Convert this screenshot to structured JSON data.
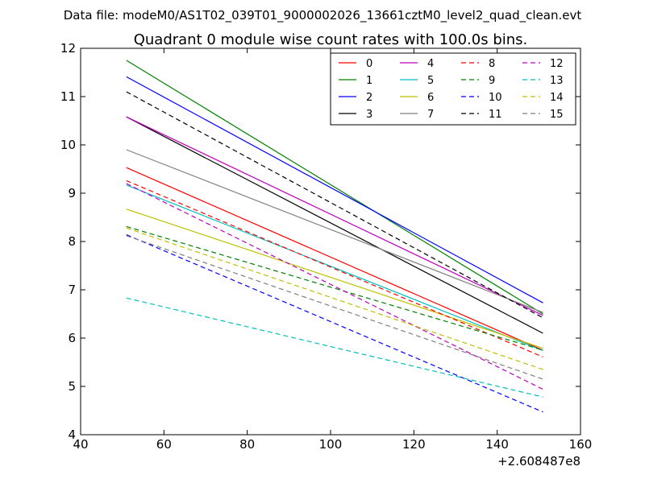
{
  "header": {
    "datafile": "Data file: modeM0/AS1T02_039T01_9000002026_13661cztM0_level2_quad_clean.evt"
  },
  "chart_data": {
    "type": "line",
    "title": "Quadrant 0 module wise count rates with 100.0s bins.",
    "xlabel": "",
    "ylabel": "",
    "x_offset_label": "+2.608487e8",
    "xlim": [
      40,
      160
    ],
    "ylim": [
      4,
      12
    ],
    "xticks": [
      "40",
      "60",
      "80",
      "100",
      "120",
      "140",
      "160"
    ],
    "yticks": [
      "4",
      "5",
      "6",
      "7",
      "8",
      "9",
      "10",
      "11",
      "12"
    ],
    "x": [
      51,
      151
    ],
    "grid": false,
    "legend_position": "top-right",
    "legend_columns": 4,
    "series": [
      {
        "name": "0",
        "color": "#ff0000",
        "dash": "solid",
        "values": [
          9.53,
          5.75
        ]
      },
      {
        "name": "1",
        "color": "#008000",
        "dash": "solid",
        "values": [
          11.75,
          6.5
        ]
      },
      {
        "name": "2",
        "color": "#0000ff",
        "dash": "solid",
        "values": [
          11.41,
          6.73
        ]
      },
      {
        "name": "3",
        "color": "#000000",
        "dash": "solid",
        "values": [
          10.58,
          6.1
        ]
      },
      {
        "name": "4",
        "color": "#bf00bf",
        "dash": "solid",
        "values": [
          10.58,
          6.47
        ]
      },
      {
        "name": "5",
        "color": "#00bfbf",
        "dash": "solid",
        "values": [
          9.17,
          5.74
        ]
      },
      {
        "name": "6",
        "color": "#bfbf00",
        "dash": "solid",
        "values": [
          8.67,
          5.79
        ]
      },
      {
        "name": "7",
        "color": "#808080",
        "dash": "solid",
        "values": [
          9.9,
          6.53
        ]
      },
      {
        "name": "8",
        "color": "#ff0000",
        "dash": "dashed",
        "values": [
          9.26,
          5.61
        ]
      },
      {
        "name": "9",
        "color": "#008000",
        "dash": "dashed",
        "values": [
          8.31,
          5.75
        ]
      },
      {
        "name": "10",
        "color": "#0000ff",
        "dash": "dashed",
        "values": [
          8.14,
          4.47
        ]
      },
      {
        "name": "11",
        "color": "#000000",
        "dash": "dashed",
        "values": [
          11.1,
          6.42
        ]
      },
      {
        "name": "12",
        "color": "#bf00bf",
        "dash": "dashed",
        "values": [
          9.2,
          4.94
        ]
      },
      {
        "name": "13",
        "color": "#00bfbf",
        "dash": "dashed",
        "values": [
          6.83,
          4.78
        ]
      },
      {
        "name": "14",
        "color": "#bfbf00",
        "dash": "dashed",
        "values": [
          8.28,
          5.35
        ]
      },
      {
        "name": "15",
        "color": "#808080",
        "dash": "dashed",
        "values": [
          8.12,
          5.15
        ]
      }
    ]
  }
}
